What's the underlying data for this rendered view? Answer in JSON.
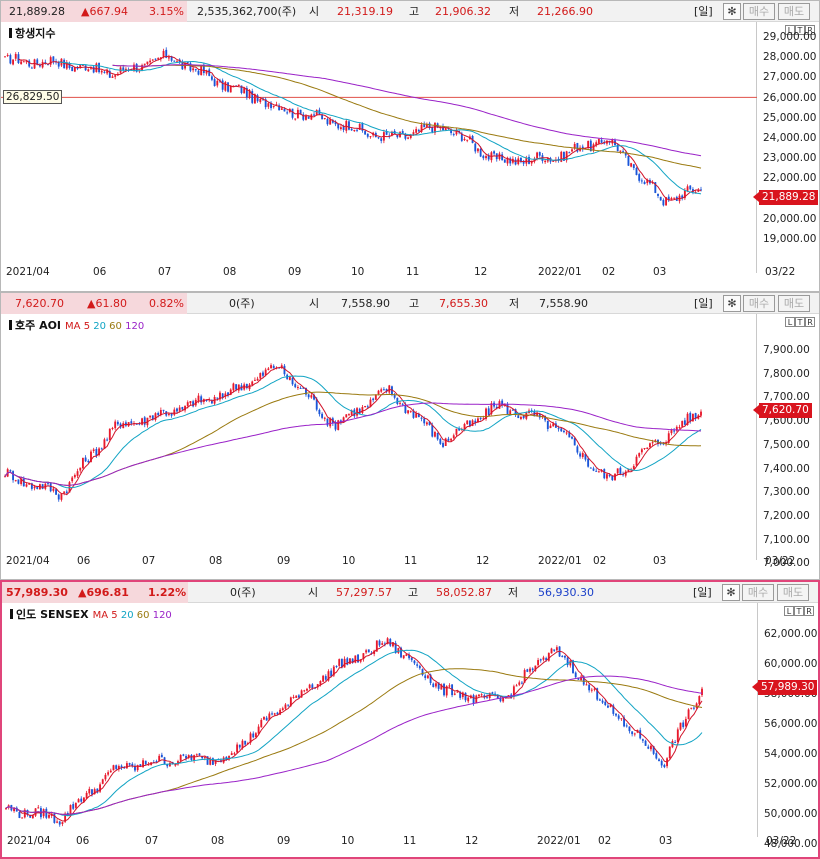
{
  "panels": [
    {
      "id": "hsi",
      "header": {
        "price": "21,889.28",
        "change": "▲667.94",
        "pct": "3.15%",
        "volume": "2,535,362,700(주)",
        "open_label": "시",
        "open": "21,319.19",
        "high_label": "고",
        "high": "21,906.32",
        "low_label": "저",
        "low": "21,266.90",
        "period": "[일]"
      },
      "title": "항생지수",
      "ma_prefix": "",
      "ma_labels": [],
      "current_tag": "21,889.28",
      "ref_label": "26,829.50",
      "y_ticks": [
        "29,000.00",
        "28,000.00",
        "27,000.00",
        "26,000.00",
        "25,000.00",
        "24,000.00",
        "23,000.00",
        "22,000.00",
        "21,000.00",
        "20,000.00",
        "19,000.00"
      ],
      "x_ticks": [
        "2021/04",
        "06",
        "07",
        "08",
        "09",
        "10",
        "11",
        "12",
        "2022/01",
        "02",
        "03"
      ],
      "date_label": "03/22"
    },
    {
      "id": "asx",
      "header": {
        "price": "7,620.70",
        "change": "▲61.80",
        "pct": "0.82%",
        "volume": "0(주)",
        "open_label": "시",
        "open": "7,558.90",
        "high_label": "고",
        "high": "7,655.30",
        "low_label": "저",
        "low": "7,558.90",
        "period": "[일]"
      },
      "title": "호주 AOI",
      "ma_prefix": "MA",
      "ma_labels": [
        "5",
        "20",
        "60",
        "120"
      ],
      "current_tag": "7,620.70",
      "ref_label": "",
      "y_ticks": [
        "7,900.00",
        "7,800.00",
        "7,700.00",
        "7,600.00",
        "7,500.00",
        "7,400.00",
        "7,300.00",
        "7,200.00",
        "7,100.00",
        "7,000.00"
      ],
      "x_ticks": [
        "2021/04",
        "06",
        "07",
        "08",
        "09",
        "10",
        "11",
        "12",
        "2022/01",
        "02",
        "03"
      ],
      "date_label": "03/22"
    },
    {
      "id": "sensex",
      "header": {
        "price": "57,989.30",
        "change": "▲696.81",
        "pct": "1.22%",
        "volume": "0(주)",
        "open_label": "시",
        "open": "57,297.57",
        "high_label": "고",
        "high": "58,052.87",
        "low_label": "저",
        "low": "56,930.30",
        "period": "[일]"
      },
      "title": "인도 SENSEX",
      "ma_prefix": "MA",
      "ma_labels": [
        "5",
        "20",
        "60",
        "120"
      ],
      "current_tag": "57,989.30",
      "ref_label": "",
      "y_ticks": [
        "62,000.00",
        "60,000.00",
        "58,000.00",
        "56,000.00",
        "54,000.00",
        "52,000.00",
        "50,000.00",
        "48,000.00"
      ],
      "x_ticks": [
        "2021/04",
        "06",
        "07",
        "08",
        "09",
        "10",
        "11",
        "12",
        "2022/01",
        "02",
        "03"
      ],
      "date_label": "03/22"
    }
  ],
  "buttons": {
    "settings_icon": "gear-icon",
    "buy": "매수",
    "sell": "매도",
    "ltr": [
      "L",
      "T",
      "R"
    ]
  },
  "colors": {
    "up": "#e8192c",
    "down": "#1a55d8",
    "ma5": "#d2142a",
    "ma20": "#12a4c4",
    "ma60": "#9a7a10",
    "ma120": "#9a22c8",
    "ref_line": "#e0504a"
  },
  "chart_data": [
    {
      "type": "candlestick",
      "title": "항생지수",
      "x_range": [
        "2021/03",
        "2022/03/22"
      ],
      "ylim": [
        18000,
        29800
      ],
      "reference_line": 26829.5,
      "last_close": 21889.28,
      "close_path": [
        {
          "x": "2021/03",
          "y": 28800
        },
        {
          "x": "2021/04",
          "y": 28700
        },
        {
          "x": "2021/05",
          "y": 28100
        },
        {
          "x": "2021/06",
          "y": 29000
        },
        {
          "x": "2021/07",
          "y": 27500
        },
        {
          "x": "2021/08",
          "y": 26300
        },
        {
          "x": "2021/09",
          "y": 25500
        },
        {
          "x": "2021/10",
          "y": 24600
        },
        {
          "x": "2021/11",
          "y": 25300
        },
        {
          "x": "2021/12",
          "y": 23400
        },
        {
          "x": "2022/01",
          "y": 23600
        },
        {
          "x": "2022/02",
          "y": 24600
        },
        {
          "x": "2022/03",
          "y": 21300
        },
        {
          "x": "2022/03/22",
          "y": 21889.28
        }
      ]
    },
    {
      "type": "candlestick",
      "title": "호주 AOI",
      "x_range": [
        "2021/03",
        "2022/03/22"
      ],
      "ylim": [
        6980,
        7980
      ],
      "last_close": 7620.7,
      "close_path": [
        {
          "x": "2021/03",
          "y": 7330
        },
        {
          "x": "2021/04",
          "y": 7240
        },
        {
          "x": "2021/05",
          "y": 7550
        },
        {
          "x": "2021/06",
          "y": 7620
        },
        {
          "x": "2021/07",
          "y": 7700
        },
        {
          "x": "2021/08",
          "y": 7830
        },
        {
          "x": "2021/09",
          "y": 7560
        },
        {
          "x": "2021/10",
          "y": 7720
        },
        {
          "x": "2021/11",
          "y": 7480
        },
        {
          "x": "2021/12",
          "y": 7650
        },
        {
          "x": "2022/01",
          "y": 7560
        },
        {
          "x": "2022/02",
          "y": 7300
        },
        {
          "x": "2022/03",
          "y": 7500
        },
        {
          "x": "2022/03/22",
          "y": 7620.7
        }
      ]
    },
    {
      "type": "candlestick",
      "title": "인도 SENSEX",
      "x_range": [
        "2021/03",
        "2022/03/22"
      ],
      "ylim": [
        47500,
        62900
      ],
      "last_close": 57989.3,
      "close_path": [
        {
          "x": "2021/03",
          "y": 49000
        },
        {
          "x": "2021/04",
          "y": 48300
        },
        {
          "x": "2021/05",
          "y": 52000
        },
        {
          "x": "2021/06",
          "y": 52700
        },
        {
          "x": "2021/07",
          "y": 52800
        },
        {
          "x": "2021/08",
          "y": 56500
        },
        {
          "x": "2021/09",
          "y": 59500
        },
        {
          "x": "2021/10",
          "y": 61500
        },
        {
          "x": "2021/11",
          "y": 57800
        },
        {
          "x": "2021/12",
          "y": 57000
        },
        {
          "x": "2022/01",
          "y": 61000
        },
        {
          "x": "2022/02",
          "y": 56500
        },
        {
          "x": "2022/03",
          "y": 52500
        },
        {
          "x": "2022/03/22",
          "y": 57989.3
        }
      ]
    }
  ]
}
